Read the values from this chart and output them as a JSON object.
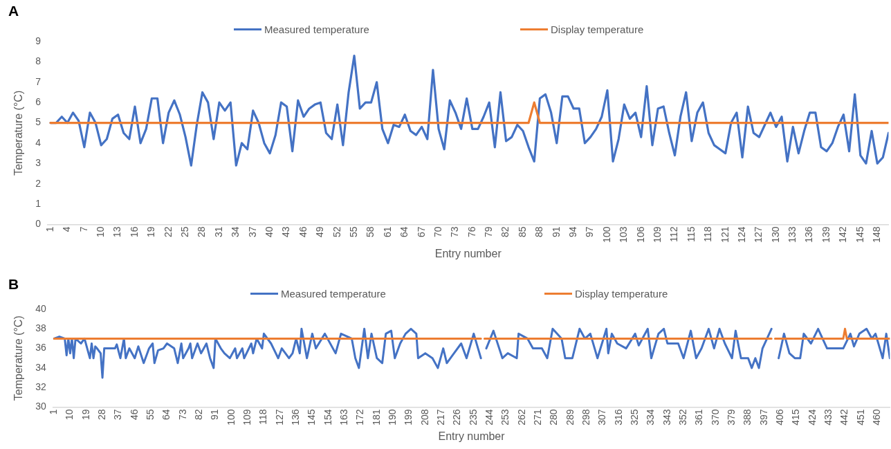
{
  "chart_data": [
    {
      "type": "line",
      "title": "A",
      "xlabel": "Entry number",
      "ylabel": "Temperature (°C)",
      "legend": "top",
      "grid": false,
      "marker": "none",
      "line_style": "solid",
      "xlim": [
        0.5,
        150
      ],
      "xticks": [
        1,
        4,
        7,
        10,
        13,
        16,
        19,
        22,
        25,
        28,
        31,
        34,
        37,
        40,
        43,
        46,
        49,
        52,
        55,
        58,
        61,
        64,
        67,
        70,
        73,
        76,
        79,
        82,
        85,
        88,
        91,
        94,
        97,
        100,
        103,
        106,
        109,
        112,
        115,
        118,
        121,
        124,
        127,
        130,
        133,
        136,
        139,
        142,
        145,
        148
      ],
      "ylim": [
        0,
        9
      ],
      "yticks": [
        0,
        1,
        2,
        3,
        4,
        5,
        6,
        7,
        8,
        9
      ],
      "series": [
        {
          "name": "Measured temperature",
          "color": "#4472c4",
          "x": [
            1,
            2,
            3,
            4,
            5,
            6,
            7,
            8,
            9,
            10,
            11,
            12,
            13,
            14,
            15,
            16,
            17,
            18,
            19,
            20,
            21,
            22,
            23,
            24,
            25,
            26,
            27,
            28,
            29,
            30,
            31,
            32,
            33,
            34,
            35,
            36,
            37,
            38,
            39,
            40,
            41,
            42,
            43,
            44,
            45,
            46,
            47,
            48,
            49,
            50,
            51,
            52,
            53,
            54,
            55,
            56,
            57,
            58,
            59,
            60,
            61,
            62,
            63,
            64,
            65,
            66,
            67,
            68,
            69,
            70,
            71,
            72,
            73,
            74,
            75,
            76,
            77,
            78,
            79,
            80,
            81,
            82,
            83,
            84,
            85,
            86,
            87,
            88,
            89,
            90,
            91,
            92,
            93,
            94,
            95,
            96,
            97,
            98,
            99,
            100,
            101,
            102,
            103,
            104,
            105,
            106,
            107,
            108,
            109,
            110,
            111,
            112,
            113,
            114,
            115,
            116,
            117,
            118,
            119,
            120,
            121,
            122,
            123,
            124,
            125,
            126,
            127,
            128,
            129,
            130,
            131,
            132,
            133,
            134,
            135,
            136,
            137,
            138,
            139,
            140,
            141,
            142,
            143,
            144,
            145,
            146,
            147,
            148,
            149,
            150
          ],
          "values": [
            5.0,
            5.0,
            5.3,
            5.0,
            5.5,
            5.1,
            3.8,
            5.5,
            5.0,
            3.9,
            4.2,
            5.2,
            5.4,
            4.5,
            4.2,
            5.8,
            4.0,
            4.7,
            6.2,
            6.2,
            4.0,
            5.5,
            6.1,
            5.4,
            4.3,
            2.9,
            4.9,
            6.5,
            6.0,
            4.2,
            6.0,
            5.6,
            6.0,
            2.9,
            4.0,
            3.7,
            5.6,
            5.0,
            4.0,
            3.5,
            4.4,
            6.0,
            5.8,
            3.6,
            6.1,
            5.3,
            5.7,
            5.9,
            6.0,
            4.5,
            4.2,
            5.9,
            3.9,
            6.5,
            8.3,
            5.7,
            6.0,
            6.0,
            7.0,
            4.7,
            4.0,
            4.9,
            4.8,
            5.4,
            4.6,
            4.4,
            4.8,
            4.2,
            7.6,
            4.7,
            3.7,
            6.1,
            5.5,
            4.7,
            6.2,
            4.7,
            4.7,
            5.3,
            6.0,
            3.8,
            6.5,
            4.1,
            4.3,
            4.9,
            4.6,
            3.8,
            3.1,
            6.2,
            6.4,
            5.5,
            4.0,
            6.3,
            6.3,
            5.7,
            5.7,
            4.0,
            4.3,
            4.7,
            5.3,
            6.6,
            3.1,
            4.2,
            5.9,
            5.2,
            5.5,
            4.3,
            6.8,
            3.9,
            5.7,
            5.8,
            4.5,
            3.4,
            5.3,
            6.5,
            4.1,
            5.5,
            6.0,
            4.5,
            3.9,
            3.7,
            3.5,
            5.0,
            5.5,
            3.3,
            5.8,
            4.5,
            4.3,
            4.9,
            5.5,
            4.8,
            5.3,
            3.1,
            4.8,
            3.5,
            4.6,
            5.5,
            5.5,
            3.8,
            3.6,
            4.0,
            4.8,
            5.4,
            3.6,
            6.4,
            3.4,
            3.0,
            4.6,
            3.0,
            3.3,
            4.5
          ]
        },
        {
          "name": "Display temperature",
          "color": "#ed7d31",
          "x": [
            1,
            86,
            87,
            88,
            150
          ],
          "values": [
            5,
            5,
            6,
            5,
            5
          ]
        }
      ]
    },
    {
      "type": "line",
      "title": "B",
      "xlabel": "Entry number",
      "ylabel": "Temperature (°C)",
      "legend": "top",
      "grid": false,
      "marker": "none",
      "line_style": "solid",
      "xlim": [
        0.5,
        467
      ],
      "xticks": [
        1,
        10,
        19,
        28,
        37,
        46,
        55,
        64,
        73,
        82,
        91,
        100,
        109,
        118,
        127,
        136,
        145,
        154,
        163,
        172,
        181,
        190,
        199,
        208,
        217,
        226,
        235,
        244,
        253,
        262,
        271,
        280,
        289,
        298,
        307,
        316,
        325,
        334,
        343,
        352,
        361,
        370,
        379,
        388,
        397,
        406,
        415,
        424,
        433,
        442,
        451,
        460
      ],
      "ylim": [
        30,
        40
      ],
      "yticks": [
        30,
        32,
        34,
        36,
        38,
        40
      ],
      "series": [
        {
          "name": "Measured temperature",
          "color": "#4472c4",
          "x": [
            1,
            4,
            7,
            8,
            9,
            10,
            11,
            12,
            13,
            16,
            18,
            21,
            22,
            23,
            24,
            25,
            27,
            28,
            29,
            35,
            36,
            38,
            40,
            41,
            43,
            46,
            48,
            51,
            54,
            56,
            57,
            59,
            62,
            64,
            68,
            70,
            72,
            73,
            76,
            77,
            78,
            81,
            83,
            86,
            88,
            90,
            91,
            94,
            96,
            99,
            102,
            103,
            106,
            107,
            111,
            112,
            114,
            117,
            118,
            122,
            126,
            128,
            132,
            134,
            136,
            138,
            139,
            142,
            145,
            147,
            152,
            158,
            161,
            167,
            169,
            171,
            174,
            176,
            178,
            181,
            184,
            186,
            189,
            191,
            194,
            197,
            200,
            203,
            204,
            208,
            212,
            215,
            218,
            220,
            224,
            228,
            231,
            235,
            239,
            240,
            242,
            246,
            251,
            254,
            259,
            260,
            265,
            268,
            273,
            276,
            279,
            284,
            286,
            290,
            294,
            297,
            300,
            304,
            309,
            310,
            312,
            315,
            320,
            325,
            327,
            332,
            334,
            338,
            341,
            343,
            349,
            352,
            356,
            359,
            362,
            366,
            369,
            372,
            375,
            379,
            381,
            384,
            388,
            390,
            392,
            394,
            396,
            401,
            402,
            405,
            408,
            411,
            414,
            417,
            419,
            423,
            427,
            432,
            437,
            441,
            445,
            447,
            450,
            454,
            457,
            459,
            463,
            465,
            467
          ],
          "values": [
            37,
            37.2,
            37,
            35.3,
            37,
            35.5,
            37,
            35,
            37,
            36.5,
            37,
            35,
            36.5,
            35,
            36.2,
            36,
            35.5,
            33,
            36,
            36,
            36.4,
            35,
            37,
            35,
            36,
            35,
            36.2,
            34.5,
            36,
            36.5,
            34.5,
            35.8,
            36,
            36.5,
            36,
            34.5,
            36.5,
            35,
            36,
            36.5,
            35,
            36.5,
            35.5,
            36.5,
            35,
            34,
            37,
            36,
            35.5,
            35,
            36,
            35,
            36,
            35,
            36.5,
            35.5,
            37,
            36,
            37.5,
            36.5,
            35,
            36,
            35,
            35.5,
            37,
            35.5,
            38,
            35,
            37.5,
            36,
            37.5,
            35.5,
            37.5,
            37,
            35,
            34,
            38,
            35,
            37.5,
            35,
            34.5,
            37.5,
            37.8,
            35,
            36.5,
            37.5,
            38,
            37.5,
            35,
            35.5,
            35,
            34,
            36,
            34.5,
            35.5,
            36.5,
            35,
            37.5,
            35,
            null,
            36,
            37.8,
            35,
            35.5,
            35,
            37.5,
            37,
            36,
            36,
            35,
            38,
            37,
            35,
            35,
            38,
            37,
            37.5,
            35,
            38,
            35.5,
            37.5,
            36.5,
            36,
            37.5,
            36.3,
            38,
            35,
            37.5,
            38,
            36.5,
            36.5,
            35,
            37.8,
            35,
            36,
            38,
            36,
            38,
            36.5,
            35,
            37.8,
            35,
            35,
            34,
            35,
            34,
            36,
            38,
            null,
            35,
            37.5,
            35.5,
            35,
            35,
            37.5,
            36.5,
            38,
            36,
            36,
            36,
            37.5,
            36.2,
            37.5,
            38,
            37,
            37.5,
            35,
            37.5,
            35
          ]
        },
        {
          "name": "Display temperature",
          "color": "#ed7d31",
          "x": [
            1,
            239,
            240,
            241,
            401,
            402,
            403,
            441,
            442,
            443,
            467
          ],
          "values": [
            37,
            37,
            null,
            37,
            37,
            null,
            37,
            37,
            38,
            37,
            37
          ]
        }
      ]
    }
  ]
}
